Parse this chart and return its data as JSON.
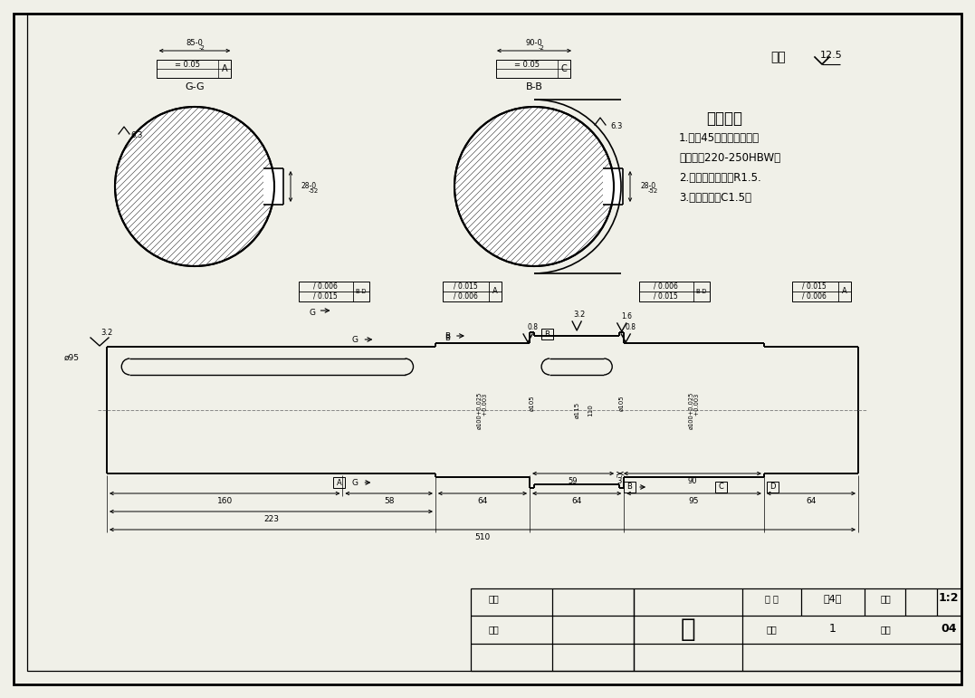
{
  "bg_color": "#f0f0e8",
  "line_color": "#000000",
  "center_line_color": "#888888",
  "tech_requirements": [
    "技术要求",
    "1.材料45钢，调制后处理",
    "表面硬度220-250HBW。",
    "2.未注圆角半径为R1.5.",
    "3.未注倒角为C1.5。"
  ],
  "title_block": {
    "part_name": "轴",
    "sheets_label": "共 张",
    "sheet_no": "第4张",
    "scale_label": "比例",
    "scale": "1:2",
    "qty_label": "数量",
    "qty": "1",
    "drawing_label": "图号",
    "drawing_no": "04",
    "drawer_label": "制图",
    "checker_label": "审核"
  },
  "surface_roughness_label": "其余",
  "surface_roughness": "12.5"
}
